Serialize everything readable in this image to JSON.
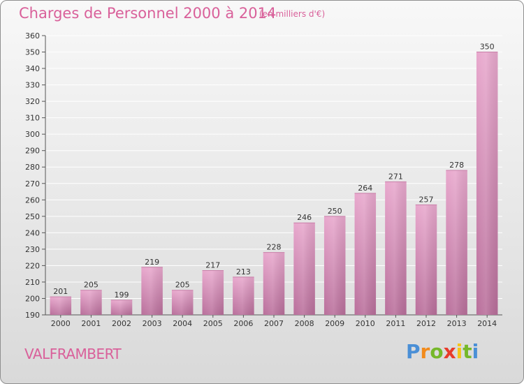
{
  "title": "Charges de Personnel 2000 à 2014",
  "subtitle": "(en milliers d'€)",
  "commune": "VALFRAMBERT",
  "logo": {
    "letters": [
      "P",
      "r",
      "o",
      "x",
      "i",
      "t",
      "i"
    ],
    "colors": [
      "#4a8fd6",
      "#f28b1c",
      "#76b82a",
      "#e83b2a",
      "#f5c518",
      "#76b82a",
      "#4a8fd6"
    ]
  },
  "colors": {
    "bar_top": "#e8a8cd",
    "bar_bottom": "#b96f9b",
    "text": "#d9609a"
  },
  "chart_data": {
    "type": "bar",
    "title": "Charges de Personnel 2000 à 2014",
    "subtitle": "(en milliers d'€)",
    "categories": [
      "2000",
      "2001",
      "2002",
      "2003",
      "2004",
      "2005",
      "2006",
      "2007",
      "2008",
      "2009",
      "2010",
      "2011",
      "2012",
      "2013",
      "2014"
    ],
    "values": [
      201,
      205,
      199,
      219,
      205,
      217,
      213,
      228,
      246,
      250,
      264,
      271,
      257,
      278,
      350
    ],
    "ylim": [
      190,
      360
    ],
    "yticks": [
      190,
      200,
      210,
      220,
      230,
      240,
      250,
      260,
      270,
      280,
      290,
      300,
      310,
      320,
      330,
      340,
      350,
      360
    ],
    "grid": true,
    "data_labels": true
  }
}
